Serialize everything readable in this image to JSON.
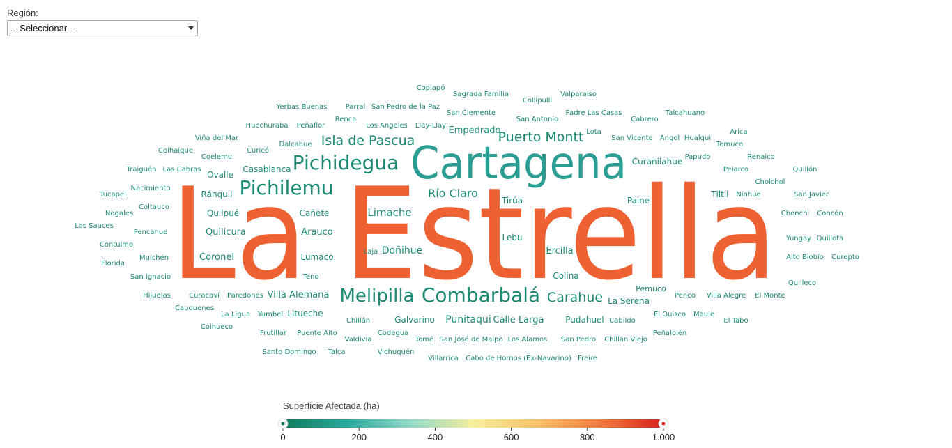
{
  "region_filter": {
    "label": "Región:",
    "selected": "-- Seleccionar --"
  },
  "chart_data": {
    "type": "wordcloud",
    "metric": "Superficie Afectada (ha)",
    "color_scale": {
      "title": "Superficie Afectada (ha)",
      "min": 0,
      "max": 1000,
      "ticks": [
        "0",
        "200",
        "400",
        "600",
        "800",
        "1.000"
      ],
      "stops": [
        "#0e7a5c",
        "#2aa89b",
        "#8fd8c8",
        "#f7ef9e",
        "#f7c26a",
        "#f07a3e",
        "#d8201a"
      ]
    },
    "words": [
      {
        "text": "La Estrella",
        "size": 182,
        "color": "#ee6132"
      },
      {
        "text": "Cartagena",
        "size": 64,
        "color": "#2b9d92"
      },
      {
        "text": "Pichidegua",
        "size": 28,
        "color": "#1c8a72"
      },
      {
        "text": "Pichilemu",
        "size": 28,
        "color": "#1c8a72"
      },
      {
        "text": "Combarbalá",
        "size": 28,
        "color": "#1c8a72"
      },
      {
        "text": "Melipilla",
        "size": 26,
        "color": "#1c8a72"
      },
      {
        "text": "Isla de Pascua",
        "size": 19,
        "color": "#1c8a72"
      },
      {
        "text": "Puerto Montt",
        "size": 19,
        "color": "#1c8a72"
      },
      {
        "text": "Carahue",
        "size": 19,
        "color": "#1c8a72"
      },
      {
        "text": "Río Claro",
        "size": 16,
        "color": "#1c8a72"
      },
      {
        "text": "Limache",
        "size": 15,
        "color": "#1c8a72"
      },
      {
        "text": "Doñihue",
        "size": 14,
        "color": "#1c8a72"
      },
      {
        "text": "Punitaqui",
        "size": 14,
        "color": "#1c8a72"
      },
      {
        "text": "Villa Alemana",
        "size": 13,
        "color": "#1c8a72"
      },
      {
        "text": "Arauco",
        "size": 13,
        "color": "#1c8a72"
      },
      {
        "text": "Quilicura",
        "size": 13,
        "color": "#1c8a72"
      },
      {
        "text": "Coronel",
        "size": 13,
        "color": "#1c8a72"
      },
      {
        "text": "Ercilla",
        "size": 13,
        "color": "#1c8a72"
      },
      {
        "text": "Empedrado",
        "size": 13,
        "color": "#1c8a72"
      },
      {
        "text": "Calle Larga",
        "size": 13,
        "color": "#1c8a72"
      },
      {
        "text": "Curanilahue",
        "size": 12,
        "color": "#1c8a72"
      },
      {
        "text": "Lumaco",
        "size": 12,
        "color": "#1c8a72"
      },
      {
        "text": "Casablanca",
        "size": 12,
        "color": "#1c8a72"
      },
      {
        "text": "Lebu",
        "size": 12,
        "color": "#1c8a72"
      },
      {
        "text": "Colina",
        "size": 12,
        "color": "#1c8a72"
      },
      {
        "text": "Paine",
        "size": 12,
        "color": "#1c8a72"
      },
      {
        "text": "Tirúa",
        "size": 12,
        "color": "#1c8a72"
      },
      {
        "text": "Galvarino",
        "size": 12,
        "color": "#1c8a72"
      },
      {
        "text": "Cañete",
        "size": 12,
        "color": "#1c8a72"
      },
      {
        "text": "Quilpué",
        "size": 12,
        "color": "#1c8a72"
      },
      {
        "text": "Ránquil",
        "size": 12,
        "color": "#1c8a72"
      },
      {
        "text": "Ovalle",
        "size": 12,
        "color": "#1c8a72"
      },
      {
        "text": "Pudahuel",
        "size": 12,
        "color": "#1c8a72"
      },
      {
        "text": "Litueche",
        "size": 12,
        "color": "#1c8a72"
      },
      {
        "text": "La Serena",
        "size": 12,
        "color": "#1c8a72"
      },
      {
        "text": "Tiltil",
        "size": 12,
        "color": "#1c8a72"
      },
      {
        "text": "Pemuco",
        "size": 11,
        "color": "#1c8a72"
      },
      {
        "text": "Copiapó",
        "size": 10,
        "color": "#1c8a72"
      },
      {
        "text": "Sagrada Familia",
        "size": 10,
        "color": "#1c8a72"
      },
      {
        "text": "Collipulli",
        "size": 10,
        "color": "#1c8a72"
      },
      {
        "text": "Valparaíso",
        "size": 10,
        "color": "#1c8a72"
      },
      {
        "text": "Yerbas Buenas",
        "size": 10,
        "color": "#1c8a72"
      },
      {
        "text": "Parral",
        "size": 10,
        "color": "#1c8a72"
      },
      {
        "text": "San Pedro de la Paz",
        "size": 10,
        "color": "#1c8a72"
      },
      {
        "text": "San Clemente",
        "size": 10,
        "color": "#1c8a72"
      },
      {
        "text": "Padre Las Casas",
        "size": 10,
        "color": "#1c8a72"
      },
      {
        "text": "Talcahuano",
        "size": 10,
        "color": "#1c8a72"
      },
      {
        "text": "Renca",
        "size": 10,
        "color": "#1c8a72"
      },
      {
        "text": "San Antonio",
        "size": 10,
        "color": "#1c8a72"
      },
      {
        "text": "Cabrero",
        "size": 10,
        "color": "#1c8a72"
      },
      {
        "text": "Huechuraba",
        "size": 10,
        "color": "#1c8a72"
      },
      {
        "text": "Peñaflor",
        "size": 10,
        "color": "#1c8a72"
      },
      {
        "text": "Los Angeles",
        "size": 10,
        "color": "#1c8a72"
      },
      {
        "text": "Llay-Llay",
        "size": 10,
        "color": "#1c8a72"
      },
      {
        "text": "Lota",
        "size": 10,
        "color": "#1c8a72"
      },
      {
        "text": "Arica",
        "size": 10,
        "color": "#1c8a72"
      },
      {
        "text": "Viña del Mar",
        "size": 10,
        "color": "#1c8a72"
      },
      {
        "text": "San Vicente",
        "size": 10,
        "color": "#1c8a72"
      },
      {
        "text": "Angol",
        "size": 10,
        "color": "#1c8a72"
      },
      {
        "text": "Hualqui",
        "size": 10,
        "color": "#1c8a72"
      },
      {
        "text": "Dalcahue",
        "size": 10,
        "color": "#1c8a72"
      },
      {
        "text": "Temuco",
        "size": 10,
        "color": "#1c8a72"
      },
      {
        "text": "Coihaique",
        "size": 10,
        "color": "#1c8a72"
      },
      {
        "text": "Curicó",
        "size": 10,
        "color": "#1c8a72"
      },
      {
        "text": "Coelemu",
        "size": 10,
        "color": "#1c8a72"
      },
      {
        "text": "Papudo",
        "size": 10,
        "color": "#1c8a72"
      },
      {
        "text": "Renaico",
        "size": 10,
        "color": "#1c8a72"
      },
      {
        "text": "Traiguén",
        "size": 10,
        "color": "#1c8a72"
      },
      {
        "text": "Las Cabras",
        "size": 10,
        "color": "#1c8a72"
      },
      {
        "text": "Pelarco",
        "size": 10,
        "color": "#1c8a72"
      },
      {
        "text": "Quillón",
        "size": 10,
        "color": "#1c8a72"
      },
      {
        "text": "Cholchol",
        "size": 10,
        "color": "#1c8a72"
      },
      {
        "text": "Nacimiento",
        "size": 10,
        "color": "#1c8a72"
      },
      {
        "text": "Tucapel",
        "size": 10,
        "color": "#1c8a72"
      },
      {
        "text": "Ninhue",
        "size": 10,
        "color": "#1c8a72"
      },
      {
        "text": "San Javier",
        "size": 10,
        "color": "#1c8a72"
      },
      {
        "text": "Coltauco",
        "size": 10,
        "color": "#1c8a72"
      },
      {
        "text": "Nogales",
        "size": 10,
        "color": "#1c8a72"
      },
      {
        "text": "Chonchi",
        "size": 10,
        "color": "#1c8a72"
      },
      {
        "text": "Concón",
        "size": 10,
        "color": "#1c8a72"
      },
      {
        "text": "Los Sauces",
        "size": 10,
        "color": "#1c8a72"
      },
      {
        "text": "Pencahue",
        "size": 10,
        "color": "#1c8a72"
      },
      {
        "text": "Yungay",
        "size": 10,
        "color": "#1c8a72"
      },
      {
        "text": "Quillota",
        "size": 10,
        "color": "#1c8a72"
      },
      {
        "text": "Contulmo",
        "size": 10,
        "color": "#1c8a72"
      },
      {
        "text": "Laja",
        "size": 10,
        "color": "#1c8a72"
      },
      {
        "text": "Mulchén",
        "size": 10,
        "color": "#1c8a72"
      },
      {
        "text": "Alto Biobío",
        "size": 10,
        "color": "#1c8a72"
      },
      {
        "text": "Curepto",
        "size": 10,
        "color": "#1c8a72"
      },
      {
        "text": "Florida",
        "size": 10,
        "color": "#1c8a72"
      },
      {
        "text": "San Ignacio",
        "size": 10,
        "color": "#1c8a72"
      },
      {
        "text": "Teno",
        "size": 10,
        "color": "#1c8a72"
      },
      {
        "text": "Quilleco",
        "size": 10,
        "color": "#1c8a72"
      },
      {
        "text": "Hijuelas",
        "size": 10,
        "color": "#1c8a72"
      },
      {
        "text": "Curacaví",
        "size": 10,
        "color": "#1c8a72"
      },
      {
        "text": "Paredones",
        "size": 10,
        "color": "#1c8a72"
      },
      {
        "text": "Penco",
        "size": 10,
        "color": "#1c8a72"
      },
      {
        "text": "Villa Alegre",
        "size": 10,
        "color": "#1c8a72"
      },
      {
        "text": "El Monte",
        "size": 10,
        "color": "#1c8a72"
      },
      {
        "text": "Cauquenes",
        "size": 10,
        "color": "#1c8a72"
      },
      {
        "text": "La Ligua",
        "size": 10,
        "color": "#1c8a72"
      },
      {
        "text": "Yumbel",
        "size": 10,
        "color": "#1c8a72"
      },
      {
        "text": "El Quisco",
        "size": 10,
        "color": "#1c8a72"
      },
      {
        "text": "Maule",
        "size": 10,
        "color": "#1c8a72"
      },
      {
        "text": "Chillán",
        "size": 10,
        "color": "#1c8a72"
      },
      {
        "text": "Cabildo",
        "size": 10,
        "color": "#1c8a72"
      },
      {
        "text": "El Tabo",
        "size": 10,
        "color": "#1c8a72"
      },
      {
        "text": "Coihueco",
        "size": 10,
        "color": "#1c8a72"
      },
      {
        "text": "Frutillar",
        "size": 10,
        "color": "#1c8a72"
      },
      {
        "text": "Puente Alto",
        "size": 10,
        "color": "#1c8a72"
      },
      {
        "text": "Codegua",
        "size": 10,
        "color": "#1c8a72"
      },
      {
        "text": "Peñalolén",
        "size": 10,
        "color": "#1c8a72"
      },
      {
        "text": "Valdivia",
        "size": 10,
        "color": "#1c8a72"
      },
      {
        "text": "Tomé",
        "size": 10,
        "color": "#1c8a72"
      },
      {
        "text": "San José de Maipo",
        "size": 10,
        "color": "#1c8a72"
      },
      {
        "text": "Los Alamos",
        "size": 10,
        "color": "#1c8a72"
      },
      {
        "text": "San Pedro",
        "size": 10,
        "color": "#1c8a72"
      },
      {
        "text": "Chillán Viejo",
        "size": 10,
        "color": "#1c8a72"
      },
      {
        "text": "Santo Domingo",
        "size": 10,
        "color": "#1c8a72"
      },
      {
        "text": "Talca",
        "size": 10,
        "color": "#1c8a72"
      },
      {
        "text": "Vichuquén",
        "size": 10,
        "color": "#1c8a72"
      },
      {
        "text": "Villarrica",
        "size": 10,
        "color": "#1c8a72"
      },
      {
        "text": "Cabo de Hornos (Ex-Navarino)",
        "size": 10,
        "color": "#1c8a72"
      },
      {
        "text": "Freire",
        "size": 10,
        "color": "#1c8a72"
      }
    ]
  }
}
